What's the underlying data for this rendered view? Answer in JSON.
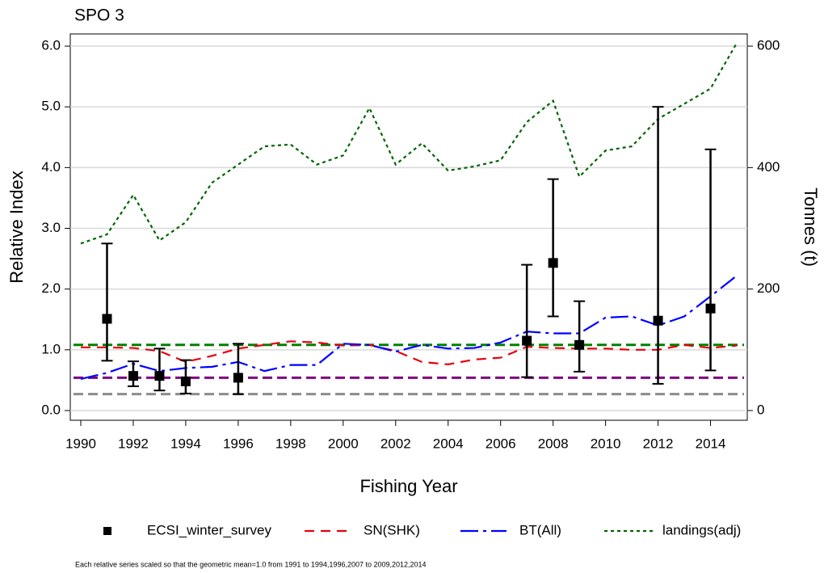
{
  "chart_data": {
    "type": "line",
    "title": "SPO 3",
    "x_label": "Fishing Year",
    "y_label": "Relative Index",
    "y2_label": "Tonnes (t)",
    "footnote": "Each relative series scaled so that the geometric mean=1.0 from 1991 to 1994,1996,2007 to 2009,2012,2014",
    "xlim": [
      1989.6,
      2015.4
    ],
    "ylim": [
      -0.16,
      6.2
    ],
    "y2lim": [
      -16,
      620
    ],
    "xticks": [
      1990,
      1992,
      1994,
      1996,
      1998,
      2000,
      2002,
      2004,
      2006,
      2008,
      2010,
      2012,
      2014
    ],
    "yticks": [
      {
        "value": 0,
        "label": "0.0"
      },
      {
        "value": 1,
        "label": "1.0"
      },
      {
        "value": 2,
        "label": "2.0"
      },
      {
        "value": 3,
        "label": "3.0"
      },
      {
        "value": 4,
        "label": "4.0"
      },
      {
        "value": 5,
        "label": "5.0"
      },
      {
        "value": 6,
        "label": "6.0"
      }
    ],
    "y2ticks": [
      0,
      200,
      400,
      600
    ],
    "grid": true,
    "x": [
      1990,
      1991,
      1992,
      1993,
      1994,
      1995,
      1996,
      1997,
      1998,
      1999,
      2000,
      2001,
      2002,
      2003,
      2004,
      2005,
      2006,
      2007,
      2008,
      2009,
      2010,
      2011,
      2012,
      2013,
      2014,
      2015
    ],
    "survey": {
      "name": "ECSI_winter_survey",
      "color": "#000000",
      "x": [
        1991,
        1992,
        1993,
        1994,
        1996,
        2007,
        2008,
        2009,
        2012,
        2014
      ],
      "values": [
        1.51,
        0.57,
        0.57,
        0.48,
        0.54,
        1.15,
        2.43,
        1.08,
        1.48,
        1.68
      ],
      "lower": [
        0.82,
        0.4,
        0.33,
        0.28,
        0.27,
        0.55,
        1.55,
        0.64,
        0.44,
        0.66
      ],
      "upper": [
        2.75,
        0.81,
        1.02,
        0.83,
        1.1,
        2.4,
        3.81,
        1.8,
        5.0,
        4.3
      ]
    },
    "series": [
      {
        "name": "SN(SHK)",
        "color": "#e8000b",
        "dash": "12 8",
        "values": [
          1.04,
          1.04,
          1.03,
          0.98,
          0.8,
          0.9,
          1.02,
          1.08,
          1.14,
          1.12,
          1.07,
          1.08,
          0.98,
          0.8,
          0.76,
          0.84,
          0.87,
          1.05,
          1.03,
          1.02,
          1.02,
          1.0,
          1.0,
          1.08,
          1.03,
          1.07
        ]
      },
      {
        "name": "BT(All)",
        "color": "#0000ff",
        "dash": "22 6 4 6",
        "values": [
          0.52,
          0.62,
          0.77,
          0.65,
          0.7,
          0.72,
          0.8,
          0.65,
          0.75,
          0.75,
          1.1,
          1.08,
          0.97,
          1.08,
          1.02,
          1.03,
          1.12,
          1.3,
          1.27,
          1.27,
          1.53,
          1.55,
          1.4,
          1.55,
          1.88,
          2.22
        ]
      },
      {
        "name": "landings(adj)",
        "color": "#006400",
        "dash": "4 4",
        "axis": "y2",
        "values": [
          275,
          290,
          355,
          280,
          310,
          375,
          405,
          435,
          438,
          405,
          420,
          498,
          405,
          440,
          395,
          402,
          412,
          475,
          510,
          385,
          428,
          435,
          480,
          505,
          530,
          605
        ]
      }
    ],
    "reference_lines": [
      {
        "value": 1.08,
        "color": "#008000"
      },
      {
        "value": 0.54,
        "color": "#800080"
      },
      {
        "value": 0.27,
        "color": "#8c8c8c"
      }
    ]
  }
}
